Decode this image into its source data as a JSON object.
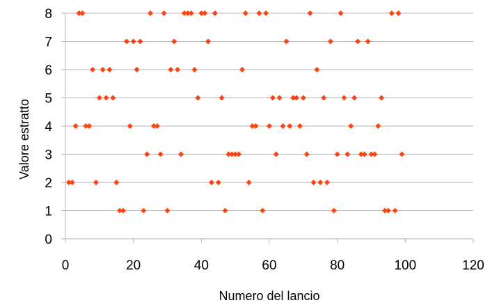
{
  "chart_data": {
    "type": "scatter",
    "title": "",
    "xlabel": "Numero del lancio",
    "ylabel": "Valore estratto",
    "xlim": [
      0,
      120
    ],
    "ylim": [
      0,
      8
    ],
    "x_ticks": [
      0,
      20,
      40,
      60,
      80,
      100,
      120
    ],
    "y_ticks": [
      0,
      1,
      2,
      3,
      4,
      5,
      6,
      7,
      8
    ],
    "grid": "horizontal",
    "legend": "none",
    "marker": "diamond",
    "marker_color": "#ff420e",
    "series": [
      {
        "points": [
          [
            1,
            2
          ],
          [
            2,
            2
          ],
          [
            3,
            4
          ],
          [
            4,
            8
          ],
          [
            5,
            8
          ],
          [
            6,
            4
          ],
          [
            7,
            4
          ],
          [
            8,
            6
          ],
          [
            9,
            2
          ],
          [
            10,
            5
          ],
          [
            11,
            6
          ],
          [
            12,
            5
          ],
          [
            13,
            6
          ],
          [
            14,
            5
          ],
          [
            15,
            2
          ],
          [
            16,
            1
          ],
          [
            17,
            1
          ],
          [
            18,
            7
          ],
          [
            19,
            4
          ],
          [
            20,
            7
          ],
          [
            21,
            6
          ],
          [
            22,
            7
          ],
          [
            23,
            1
          ],
          [
            24,
            3
          ],
          [
            25,
            8
          ],
          [
            26,
            4
          ],
          [
            27,
            4
          ],
          [
            28,
            3
          ],
          [
            29,
            8
          ],
          [
            30,
            1
          ],
          [
            31,
            6
          ],
          [
            32,
            7
          ],
          [
            33,
            6
          ],
          [
            34,
            3
          ],
          [
            35,
            8
          ],
          [
            36,
            8
          ],
          [
            37,
            8
          ],
          [
            38,
            6
          ],
          [
            39,
            5
          ],
          [
            40,
            8
          ],
          [
            41,
            8
          ],
          [
            42,
            7
          ],
          [
            43,
            2
          ],
          [
            44,
            8
          ],
          [
            45,
            2
          ],
          [
            46,
            5
          ],
          [
            47,
            1
          ],
          [
            48,
            3
          ],
          [
            49,
            3
          ],
          [
            50,
            3
          ],
          [
            51,
            3
          ],
          [
            52,
            6
          ],
          [
            53,
            8
          ],
          [
            54,
            2
          ],
          [
            55,
            4
          ],
          [
            56,
            4
          ],
          [
            57,
            8
          ],
          [
            58,
            1
          ],
          [
            59,
            8
          ],
          [
            60,
            4
          ],
          [
            61,
            5
          ],
          [
            62,
            3
          ],
          [
            63,
            5
          ],
          [
            64,
            4
          ],
          [
            65,
            7
          ],
          [
            66,
            4
          ],
          [
            67,
            5
          ],
          [
            68,
            5
          ],
          [
            69,
            4
          ],
          [
            70,
            5
          ],
          [
            71,
            3
          ],
          [
            72,
            8
          ],
          [
            73,
            2
          ],
          [
            74,
            6
          ],
          [
            75,
            2
          ],
          [
            76,
            5
          ],
          [
            77,
            2
          ],
          [
            78,
            7
          ],
          [
            79,
            1
          ],
          [
            80,
            3
          ],
          [
            81,
            8
          ],
          [
            82,
            5
          ],
          [
            83,
            3
          ],
          [
            84,
            4
          ],
          [
            85,
            5
          ],
          [
            86,
            7
          ],
          [
            87,
            3
          ],
          [
            88,
            3
          ],
          [
            89,
            7
          ],
          [
            90,
            3
          ],
          [
            91,
            3
          ],
          [
            92,
            4
          ],
          [
            93,
            5
          ],
          [
            94,
            1
          ],
          [
            95,
            1
          ],
          [
            96,
            8
          ],
          [
            97,
            1
          ],
          [
            98,
            8
          ],
          [
            99,
            3
          ]
        ]
      }
    ]
  }
}
